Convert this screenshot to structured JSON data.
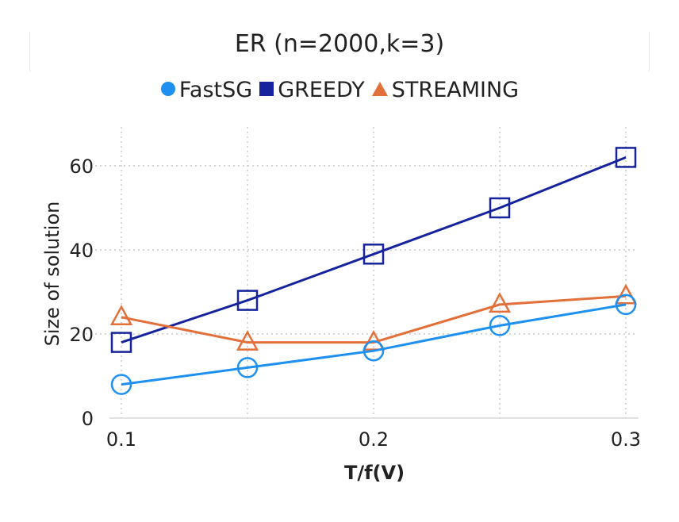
{
  "chart_data": {
    "type": "line",
    "title": "ER (n=2000,k=3)",
    "xlabel": "T/f(V)",
    "ylabel": "Size of solution",
    "x": [
      0.1,
      0.15,
      0.2,
      0.25,
      0.3
    ],
    "xticks": [
      "0.1",
      "0.2",
      "0.3"
    ],
    "yticks": [
      "0",
      "20",
      "40",
      "60"
    ],
    "xlim": [
      0.1,
      0.3
    ],
    "ylim": [
      0,
      70
    ],
    "grid": true,
    "legend_position": "top",
    "series": [
      {
        "name": "FastSG",
        "color": "#1e90f0",
        "marker": "circle",
        "legend_marker": "filled-circle",
        "values": [
          8,
          12,
          16,
          22,
          27
        ]
      },
      {
        "name": "GREEDY",
        "color": "#16239c",
        "marker": "square",
        "legend_marker": "filled-square",
        "values": [
          18,
          28,
          39,
          50,
          62
        ]
      },
      {
        "name": "STREAMING",
        "color": "#e2703a",
        "marker": "triangle",
        "legend_marker": "filled-triangle",
        "values": [
          24,
          18,
          18,
          27,
          29
        ]
      }
    ]
  }
}
